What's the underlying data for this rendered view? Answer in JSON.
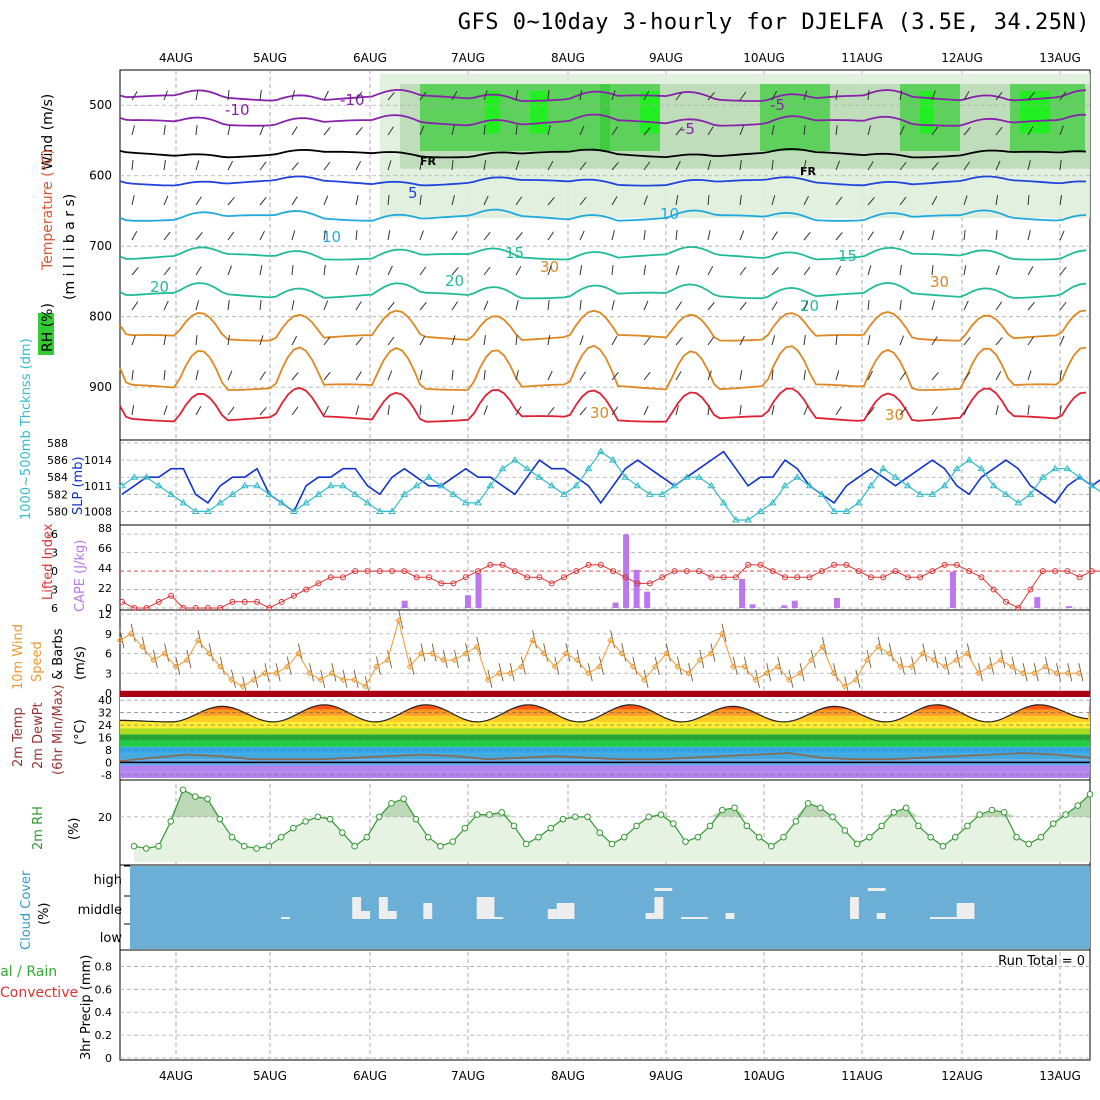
{
  "title": "GFS 0~10day 3-hourly for DJELFA (3.5E, 34.25N)",
  "colors": {
    "rh_green": "#33cc33",
    "rh_bright": "#22ee22",
    "rh_light": "#dfeedd",
    "temp_purple": "#8822aa",
    "temp_blue": "#2244dd",
    "temp_cyan": "#22aadd",
    "temp_teal": "#22bb99",
    "temp_orange": "#dd8822",
    "temp_red": "#dd2233",
    "slp": "#1133cc",
    "thick": "#33bbcc",
    "cape": "#bb77ee",
    "li": "#dd3333",
    "wind": "#ee9933",
    "cloud_bg": "#6baed6",
    "cloud_bar": "#eeeeee",
    "rh2": "#339933"
  },
  "chart_data": {
    "type": "meteogram",
    "dates": [
      "4AUG",
      "5AUG",
      "6AUG",
      "7AUG",
      "8AUG",
      "9AUG",
      "10AUG",
      "11AUG",
      "12AUG",
      "13AUG"
    ],
    "panels": {
      "upper": {
        "labels": [
          "Wind (m/s)",
          "Temperature (°C)",
          "RH (%)",
          "(m i l l i b a r s)"
        ],
        "yticks": [
          "500",
          "600",
          "700",
          "800",
          "900"
        ],
        "isotherm_labels": [
          "-10",
          "-5",
          "-10",
          "-5",
          "FR",
          "FR",
          "5",
          "10",
          "10",
          "15",
          "15",
          "20",
          "20",
          "20",
          "30",
          "30",
          "30",
          "30"
        ],
        "ylim": [
          450,
          975
        ]
      },
      "slp_thick": {
        "labels": [
          "1000~500mb Thcknss (dm)",
          "SLP (mb)"
        ],
        "left_ticks": [
          "588",
          "586",
          "584",
          "582",
          "580"
        ],
        "right_ticks": [
          "1014",
          "1011",
          "1008"
        ],
        "slp": [
          1010,
          1011,
          1012,
          1012,
          1013,
          1013,
          1010,
          1009,
          1011,
          1012,
          1012,
          1013,
          1010,
          1009,
          1008,
          1011,
          1012,
          1012,
          1013,
          1013,
          1011,
          1010,
          1012,
          1013,
          1012,
          1011,
          1011,
          1012,
          1013,
          1012,
          1012,
          1011,
          1010,
          1012,
          1014,
          1013,
          1013,
          1012,
          1011,
          1009,
          1011,
          1013,
          1014,
          1013,
          1012,
          1011,
          1012,
          1013,
          1014,
          1015,
          1013,
          1011,
          1012,
          1012,
          1014,
          1013,
          1011,
          1010,
          1009,
          1011,
          1012,
          1013,
          1012,
          1011,
          1012,
          1013,
          1014,
          1013,
          1011,
          1010,
          1012,
          1013,
          1014,
          1013,
          1011,
          1010,
          1009,
          1011,
          1012,
          1011,
          1012,
          1013,
          1014,
          1013
        ],
        "thickness": [
          583,
          584,
          584,
          583,
          582,
          581,
          580,
          580,
          581,
          582,
          583,
          583,
          582,
          581,
          580,
          581,
          582,
          583,
          583,
          582,
          581,
          580,
          580,
          582,
          583,
          584,
          583,
          582,
          581,
          581,
          583,
          585,
          586,
          585,
          584,
          583,
          582,
          583,
          585,
          587,
          586,
          584,
          583,
          582,
          582,
          583,
          584,
          584,
          583,
          581,
          579,
          579,
          580,
          581,
          583,
          584,
          583,
          582,
          580,
          580,
          581,
          583,
          585,
          584,
          583,
          582,
          582,
          583,
          585,
          586,
          585,
          583,
          582,
          581,
          582,
          584,
          585,
          585,
          584,
          583,
          582,
          582,
          583
        ],
        "ylim_left": [
          579,
          588
        ],
        "ylim_right": [
          1007,
          1016
        ]
      },
      "cape_li": {
        "labels": [
          "Lifted Index",
          "CAPE (J/kg)"
        ],
        "left_ticks": [
          "-6",
          "-3",
          "0",
          "3",
          "6"
        ],
        "right_ticks": [
          "88",
          "66",
          "44",
          "22",
          "0"
        ],
        "li": [
          5,
          6,
          6,
          5,
          4,
          6,
          6,
          6,
          6,
          5,
          5,
          5,
          6,
          5,
          4,
          3,
          2,
          1,
          1,
          0,
          0,
          0,
          0,
          0,
          1,
          1,
          2,
          2,
          1,
          0,
          -1,
          -1,
          0,
          1,
          1,
          2,
          1,
          0,
          -1,
          -1,
          0,
          1,
          2,
          2,
          1,
          0,
          0,
          0,
          1,
          1,
          1,
          -1,
          -1,
          0,
          1,
          1,
          1,
          0,
          -1,
          -1,
          0,
          1,
          1,
          0,
          1,
          1,
          0,
          -1,
          -1,
          0,
          1,
          3,
          5,
          6,
          3,
          0,
          0,
          0,
          1,
          0,
          0,
          0,
          1,
          0
        ],
        "cape": [
          0,
          0,
          0,
          0,
          0,
          0,
          0,
          0,
          0,
          0,
          0,
          0,
          0,
          0,
          0,
          0,
          0,
          0,
          0,
          0,
          0,
          0,
          0,
          0,
          0,
          0,
          0,
          8,
          0,
          0,
          0,
          0,
          0,
          14,
          38,
          0,
          0,
          0,
          0,
          0,
          0,
          0,
          0,
          0,
          0,
          0,
          0,
          6,
          81,
          42,
          18,
          0,
          0,
          0,
          0,
          0,
          0,
          0,
          0,
          32,
          4,
          0,
          0,
          3,
          8,
          0,
          0,
          0,
          11,
          0,
          0,
          0,
          0,
          0,
          0,
          0,
          0,
          0,
          0,
          40,
          0,
          0,
          0,
          0,
          0,
          0,
          0,
          12,
          0,
          0,
          2,
          0
        ],
        "ylim_li": [
          6,
          -7
        ],
        "ylim_cape": [
          0,
          88
        ]
      },
      "wind10m": {
        "labels": [
          "10m Wind",
          "Speed",
          "& Barbs",
          "(m/s)"
        ],
        "yticks": [
          "12",
          "9",
          "6",
          "3",
          "0"
        ],
        "speed": [
          8,
          9,
          7,
          5,
          6,
          4,
          5,
          8,
          6,
          4,
          2,
          1,
          2,
          3,
          3,
          4,
          6,
          3,
          2,
          3,
          2,
          2,
          1,
          4,
          5,
          11,
          4,
          6,
          6,
          5,
          5,
          6,
          7,
          2,
          3,
          3,
          4,
          8,
          6,
          4,
          6,
          5,
          3,
          4,
          8,
          6,
          4,
          2,
          4,
          6,
          4,
          3,
          5,
          6,
          9,
          4,
          4,
          2,
          3,
          4,
          2,
          3,
          5,
          7,
          3,
          1,
          2,
          5,
          7,
          6,
          4,
          4,
          6,
          5,
          4,
          5,
          6,
          3,
          4,
          5,
          4,
          3,
          3,
          4,
          3,
          3,
          3
        ],
        "ylim": [
          0,
          12
        ]
      },
      "temp2m": {
        "labels": [
          "2m Temp",
          "2m DewPt",
          "(6hr Min/Max)",
          "(°C)"
        ],
        "yticks": [
          "40",
          "32",
          "24",
          "16",
          "8",
          "0",
          "-8"
        ],
        "max_temp": [
          27,
          26,
          36,
          26,
          37,
          26,
          37,
          26,
          37,
          26,
          37,
          26,
          36,
          26,
          36,
          26,
          37,
          26,
          37,
          28
        ],
        "dewpoint": [
          1,
          3,
          5,
          4,
          2,
          2,
          2,
          3,
          4,
          5,
          4,
          2,
          3,
          4,
          3,
          2,
          2,
          3,
          4,
          5,
          6,
          3,
          2,
          2,
          3,
          4,
          5,
          6,
          5,
          3
        ],
        "ylim": [
          -10,
          42
        ]
      },
      "rh2m": {
        "labels": [
          "2m RH",
          "(%)"
        ],
        "yticks": [
          "20"
        ],
        "values": [
          7,
          6,
          7,
          18,
          32,
          29,
          28,
          19,
          11,
          7,
          6,
          7,
          11,
          15,
          18,
          20,
          19,
          13,
          7,
          11,
          20,
          26,
          28,
          19,
          11,
          7,
          9,
          15,
          21,
          21,
          22,
          16,
          8,
          11,
          15,
          19,
          20,
          20,
          13,
          8,
          11,
          16,
          20,
          21,
          17,
          9,
          11,
          16,
          23,
          24,
          16,
          11,
          7,
          11,
          18,
          26,
          24,
          20,
          14,
          8,
          11,
          16,
          22,
          24,
          16,
          11,
          7,
          11,
          16,
          21,
          23,
          22,
          11,
          8,
          11,
          17,
          21,
          25,
          30
        ],
        "ylim": [
          0,
          35
        ]
      },
      "cloud": {
        "labels": [
          "Cloud Cover",
          "(%)"
        ],
        "levels": [
          "high",
          "middle",
          "low"
        ],
        "mid": [
          0,
          0,
          0,
          0,
          0,
          0,
          0,
          0,
          0,
          0,
          0,
          0,
          0,
          0,
          0,
          0,
          0,
          2,
          0,
          0,
          0,
          0,
          0,
          0,
          0,
          22,
          8,
          0,
          22,
          8,
          0,
          0,
          0,
          16,
          0,
          0,
          0,
          0,
          0,
          22,
          22,
          2,
          0,
          0,
          0,
          0,
          0,
          10,
          16,
          16,
          0,
          0,
          0,
          0,
          0,
          0,
          0,
          0,
          6,
          22,
          0,
          0,
          2,
          2,
          2,
          0,
          0,
          6,
          0,
          0,
          0,
          0,
          0,
          0,
          0,
          0,
          0,
          0,
          0,
          0,
          0,
          22,
          0,
          0,
          6,
          0,
          0,
          0,
          0,
          0,
          2,
          2,
          2,
          16,
          16,
          0,
          0,
          0,
          0,
          0,
          0,
          0,
          0,
          0,
          0,
          0,
          0,
          0
        ],
        "high": [
          0,
          0,
          0,
          0,
          0,
          0,
          0,
          0,
          0,
          0,
          0,
          0,
          0,
          0,
          0,
          0,
          0,
          0,
          0,
          0,
          0,
          0,
          0,
          0,
          0,
          0,
          0,
          0,
          0,
          0,
          0,
          0,
          0,
          0,
          0,
          0,
          0,
          0,
          0,
          0,
          0,
          0,
          0,
          0,
          0,
          0,
          0,
          0,
          0,
          0,
          0,
          0,
          0,
          0,
          0,
          0,
          0,
          0,
          0,
          3,
          0,
          0,
          0,
          0,
          0,
          0,
          0,
          0,
          0,
          0,
          0,
          0,
          0,
          0,
          0,
          0,
          0,
          0,
          0,
          0,
          0,
          0,
          0,
          3,
          0,
          0,
          0,
          0,
          0,
          0,
          0,
          0,
          0,
          0,
          0,
          0,
          0,
          0
        ]
      },
      "precip": {
        "labels": [
          "Total / Rain",
          "Convective",
          "3hr Precip (mm)"
        ],
        "yticks": [
          "0.8",
          "0.6",
          "0.4",
          "0.2",
          "0"
        ],
        "run_total": "Run Total = 0",
        "ylim": [
          0,
          0.9
        ]
      }
    }
  }
}
